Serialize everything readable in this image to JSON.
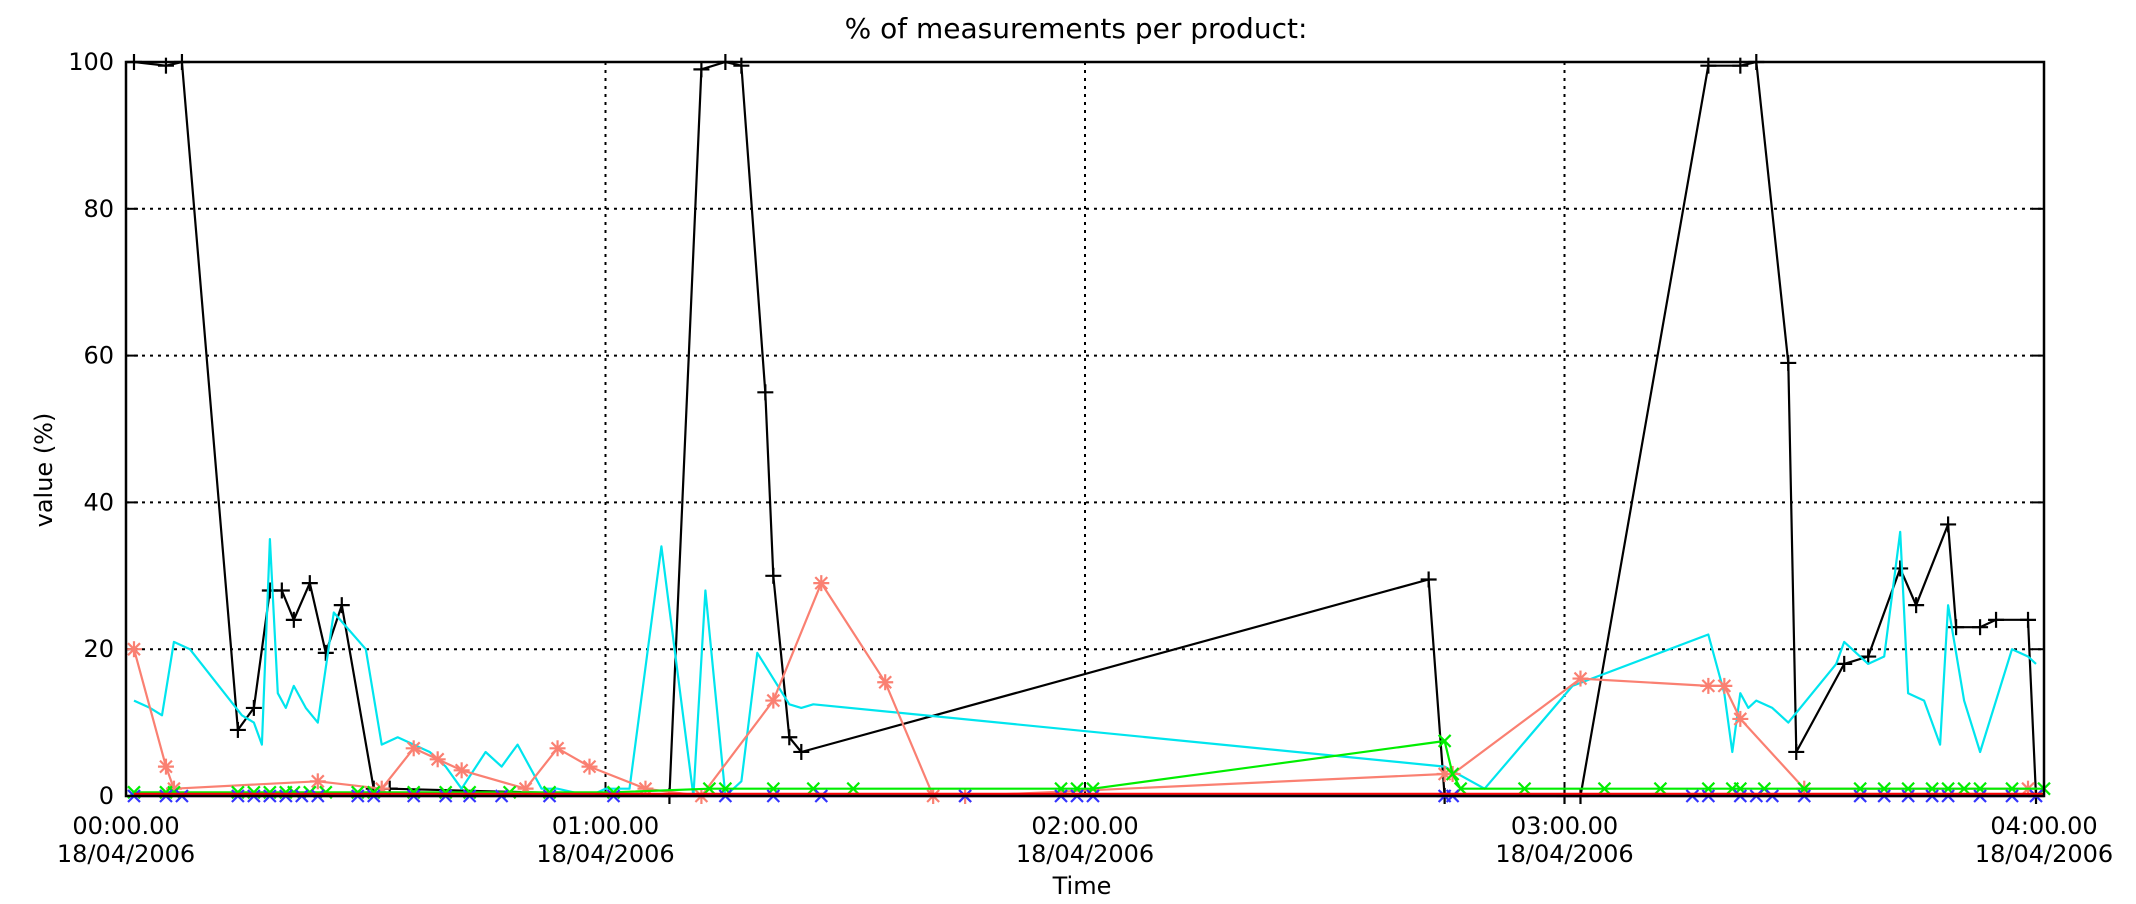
{
  "chart_data": {
    "type": "line",
    "title": "% of measurements per product:",
    "xlabel": "Time",
    "ylabel": "value (%)",
    "xlim": [
      0,
      240
    ],
    "ylim": [
      0,
      100
    ],
    "grid": true,
    "x_ticks": [
      {
        "value": 0,
        "time": "00:00.00",
        "date": "18/04/2006"
      },
      {
        "value": 60,
        "time": "01:00.00",
        "date": "18/04/2006"
      },
      {
        "value": 120,
        "time": "02:00.00",
        "date": "18/04/2006"
      },
      {
        "value": 180,
        "time": "03:00.00",
        "date": "18/04/2006"
      },
      {
        "value": 240,
        "time": "04:00.00",
        "date": "18/04/2006"
      }
    ],
    "y_ticks": [
      0,
      20,
      40,
      60,
      80,
      100
    ],
    "series": [
      {
        "color": "#000000",
        "marker": "plus",
        "x": [
          1,
          5,
          7,
          14,
          16,
          18,
          19.5,
          21,
          23,
          25,
          27,
          31,
          33,
          68,
          72,
          75,
          77,
          80,
          81,
          83,
          84.5,
          163,
          165,
          180,
          182,
          198,
          202,
          204,
          208,
          209,
          215,
          218,
          222,
          224,
          228,
          229,
          232,
          234,
          238,
          239
        ],
        "y": [
          100,
          99.5,
          100,
          9,
          12,
          28,
          28,
          24,
          29,
          19.5,
          26,
          1,
          1,
          0,
          99,
          100,
          99.5,
          55,
          30,
          8,
          6,
          29.5,
          0,
          0,
          0,
          99.5,
          99.5,
          100,
          59,
          6,
          18,
          19,
          31,
          26,
          37,
          23,
          23,
          24,
          24,
          0
        ]
      },
      {
        "color": "#00e5ee",
        "marker": "none",
        "x": [
          1,
          3,
          4.5,
          6,
          8,
          14.5,
          16,
          17,
          18,
          19,
          20,
          21,
          22.5,
          24,
          26,
          30,
          32,
          34,
          36,
          38,
          40,
          42,
          45,
          47,
          49,
          52,
          54,
          58,
          60,
          63,
          67,
          71,
          72.5,
          75,
          77,
          79,
          83,
          84.5,
          86,
          165,
          170,
          181,
          198,
          200,
          201,
          202,
          203,
          204,
          206,
          208,
          214,
          215,
          218,
          220,
          222,
          223,
          225,
          227,
          228,
          230,
          232,
          236,
          238,
          239
        ],
        "y": [
          13,
          12,
          11,
          21,
          20,
          11,
          10,
          7,
          35,
          14,
          12,
          15,
          12,
          10,
          25,
          20,
          7,
          8,
          7,
          6,
          4,
          1,
          6,
          4,
          7,
          1,
          1,
          0,
          1,
          1,
          34,
          0,
          28,
          0,
          2,
          19.5,
          12.5,
          12,
          12.5,
          4,
          1,
          15,
          22,
          14,
          6,
          14,
          12,
          13,
          12,
          10,
          18,
          21,
          18,
          19,
          36,
          14,
          13,
          7,
          26,
          13,
          6,
          20,
          19,
          18
        ]
      },
      {
        "color": "#fa8072",
        "marker": "asterisk",
        "x": [
          1,
          5,
          6,
          24,
          32,
          36,
          39,
          42,
          50,
          54,
          58,
          65,
          72,
          81,
          87,
          95,
          101,
          105,
          165,
          166,
          182,
          198,
          200,
          202,
          210,
          238
        ],
        "y": [
          20,
          4,
          1,
          2,
          1,
          6.5,
          5,
          3.5,
          1,
          6.5,
          4,
          1,
          0,
          13,
          29,
          15.5,
          0,
          0,
          3,
          3,
          16,
          15,
          15,
          10.5,
          1,
          1
        ]
      },
      {
        "color": "#00ee00",
        "marker": "x",
        "x": [
          1,
          5,
          6,
          14,
          16,
          18,
          20,
          21,
          23,
          25,
          29,
          31,
          36,
          40,
          43,
          48,
          53,
          61,
          73,
          75,
          81,
          86,
          91,
          117,
          119,
          121,
          165,
          166,
          167,
          175,
          185,
          192,
          198,
          201,
          202,
          205,
          210,
          217,
          220,
          223,
          226,
          228,
          230,
          232,
          236,
          240
        ],
        "y": [
          0.5,
          0.5,
          0.5,
          0.5,
          0.5,
          0.5,
          0.5,
          0.5,
          0.5,
          0.5,
          0.5,
          0.5,
          0.5,
          0.5,
          0.5,
          0.5,
          0.5,
          0.5,
          1,
          1,
          1,
          1,
          1,
          1,
          1,
          1,
          7.5,
          3,
          1,
          1,
          1,
          1,
          1,
          1,
          1,
          1,
          1,
          1,
          1,
          1,
          1,
          1,
          1,
          1,
          1,
          1
        ]
      },
      {
        "color": "#3333ff",
        "marker": "x",
        "x": [
          1,
          5,
          7,
          14,
          16,
          18,
          20,
          22,
          24,
          29,
          31,
          36,
          40,
          43,
          47,
          53,
          61,
          75,
          81,
          87,
          105,
          117,
          119,
          121,
          165,
          166,
          196,
          198,
          202,
          204,
          206,
          210,
          217,
          220,
          223,
          226,
          228,
          232,
          236,
          239
        ],
        "y": [
          0,
          0,
          0,
          0,
          0,
          0,
          0,
          0,
          0,
          0,
          0,
          0,
          0,
          0,
          0,
          0,
          0,
          0,
          0,
          0,
          0,
          0,
          0,
          0,
          0,
          0,
          0,
          0,
          0,
          0,
          0,
          0,
          0,
          0,
          0,
          0,
          0,
          0,
          0,
          0
        ]
      },
      {
        "color": "#ee00ee",
        "marker": "none",
        "x": [
          1,
          240
        ],
        "y": [
          0,
          0
        ]
      },
      {
        "color": "#ff0000",
        "marker": "none",
        "x": [
          1,
          100,
          180,
          240
        ],
        "y": [
          0.3,
          0.3,
          0.3,
          0.3
        ]
      }
    ]
  }
}
